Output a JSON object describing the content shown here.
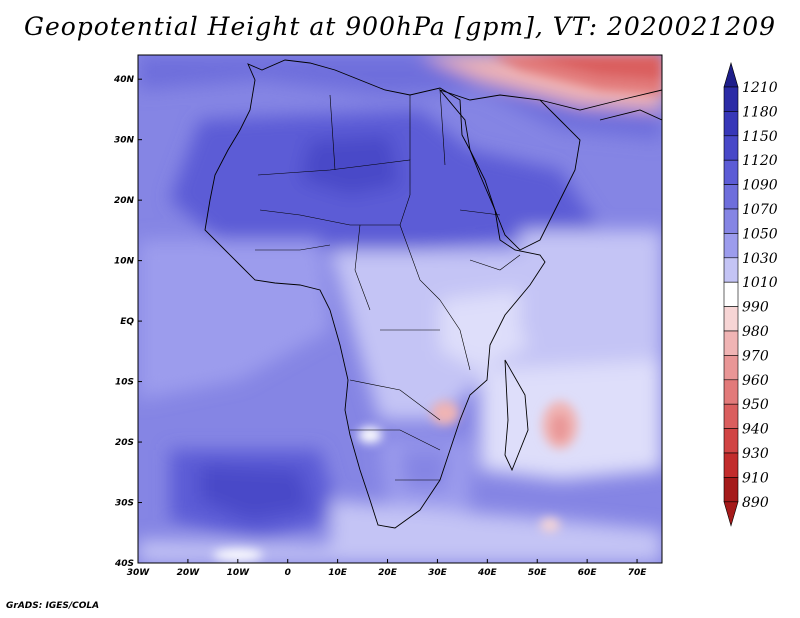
{
  "title": "Geopotential Height at 900hPa [gpm], VT: 2020021209",
  "credit": "GrADS: IGES/COLA",
  "map": {
    "lon_range": [
      -30,
      75
    ],
    "lat_range": [
      -40,
      44
    ],
    "x_ticks": [
      "30W",
      "20W",
      "10W",
      "0",
      "10E",
      "20E",
      "30E",
      "40E",
      "50E",
      "60E",
      "70E"
    ],
    "y_ticks": [
      "40N",
      "30N",
      "20N",
      "10N",
      "EQ",
      "10S",
      "20S",
      "30S",
      "40S"
    ]
  },
  "colorbar": {
    "levels": [
      "1210",
      "1180",
      "1150",
      "1120",
      "1090",
      "1070",
      "1050",
      "1030",
      "1010",
      "990",
      "980",
      "970",
      "960",
      "950",
      "940",
      "930",
      "910",
      "890"
    ],
    "colors": [
      "#1e1e8a",
      "#2b2ba6",
      "#3737b8",
      "#4848c8",
      "#5c5cd6",
      "#6e6edc",
      "#8585e4",
      "#9c9ced",
      "#c4c4f5",
      "#ffffff",
      "#f7d5d5",
      "#f0b4b4",
      "#e99696",
      "#e27a7a",
      "#da5e5e",
      "#d14444",
      "#c22c2c",
      "#a51a1a"
    ]
  }
}
